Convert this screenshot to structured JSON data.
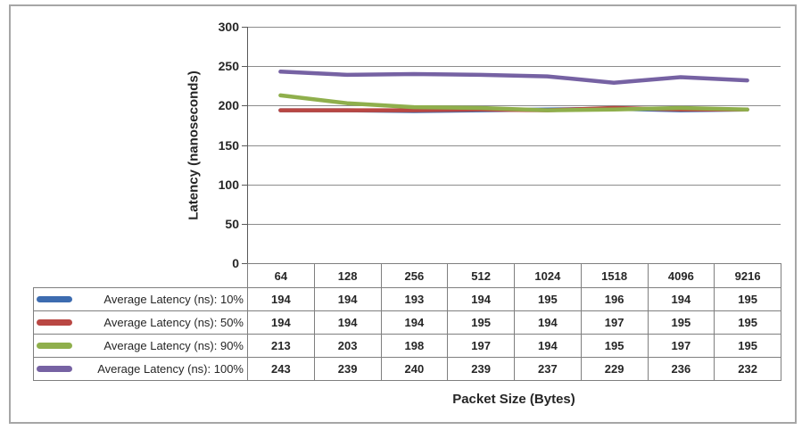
{
  "figure": {
    "border_color": "#A6A6A6",
    "background": "#FFFFFF"
  },
  "chart_data": {
    "type": "line",
    "title": "",
    "xlabel": "Packet Size (Bytes)",
    "ylabel": "Latency (nanoseconds)",
    "ylim": [
      0,
      300
    ],
    "yticks": [
      0,
      50,
      100,
      150,
      200,
      250,
      300
    ],
    "grid": true,
    "legend_position": "left-column-of-data-table",
    "gridline_color": "#8C8C8C",
    "axis_color": "#595959",
    "table_border_color": "#7F7F7F",
    "text_color": "#262626",
    "categories": [
      "64",
      "128",
      "256",
      "512",
      "1024",
      "1518",
      "4096",
      "9216"
    ],
    "series": [
      {
        "name": "Average Latency (ns): 10%",
        "color": "#3D6CB0",
        "values": [
          194,
          194,
          193,
          194,
          195,
          196,
          194,
          195
        ]
      },
      {
        "name": "Average Latency (ns): 50%",
        "color": "#B94743",
        "values": [
          194,
          194,
          194,
          195,
          194,
          197,
          195,
          195
        ]
      },
      {
        "name": "Average Latency (ns): 90%",
        "color": "#8FAF4C",
        "values": [
          213,
          203,
          198,
          197,
          194,
          195,
          197,
          195
        ]
      },
      {
        "name": "Average Latency (ns): 100%",
        "color": "#7662A3",
        "values": [
          243,
          239,
          240,
          239,
          237,
          229,
          236,
          232
        ]
      }
    ]
  }
}
